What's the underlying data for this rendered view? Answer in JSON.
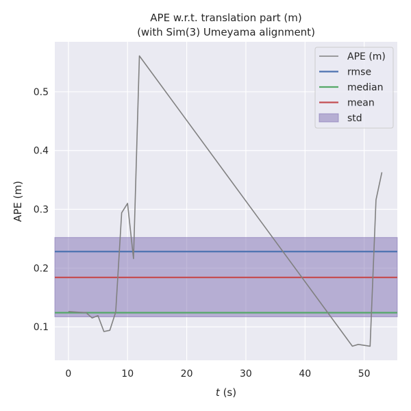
{
  "chart_data": {
    "type": "line",
    "title": "APE w.r.t. translation part (m)",
    "subtitle": "(with Sim(3) Umeyama alignment)",
    "xlabel_var": "t",
    "xlabel_unit": " (s)",
    "ylabel": "APE (m)",
    "xlim": [
      -2.3,
      55.6
    ],
    "ylim": [
      0.043,
      0.585
    ],
    "xticks": [
      0,
      10,
      20,
      30,
      40,
      50
    ],
    "yticks": [
      0.1,
      0.2,
      0.3,
      0.4,
      0.5
    ],
    "xtick_labels": [
      "0",
      "10",
      "20",
      "30",
      "40",
      "50"
    ],
    "ytick_labels": [
      "0.1",
      "0.2",
      "0.3",
      "0.4",
      "0.5"
    ],
    "grid": true,
    "legend_position": "top-right",
    "series": [
      {
        "name": "APE (m)",
        "color": "#808080",
        "x": [
          0,
          3,
          4,
          5,
          6,
          7,
          8,
          9,
          10,
          11,
          12,
          48,
          49,
          51,
          52,
          53
        ],
        "y": [
          0.126,
          0.124,
          0.115,
          0.119,
          0.092,
          0.094,
          0.125,
          0.294,
          0.31,
          0.216,
          0.561,
          0.067,
          0.07,
          0.067,
          0.316,
          0.363
        ]
      }
    ],
    "stats": {
      "rmse": {
        "name": "rmse",
        "value": 0.228,
        "color": "#4c72b0"
      },
      "median": {
        "name": "median",
        "value": 0.124,
        "color": "#55a868"
      },
      "mean": {
        "name": "mean",
        "value": 0.184,
        "color": "#c44e52"
      },
      "std": {
        "name": "std",
        "low": 0.117,
        "high": 0.252,
        "color": "#8172b3"
      }
    },
    "legend": [
      "APE (m)",
      "rmse",
      "median",
      "mean",
      "std"
    ]
  },
  "colors": {
    "plot_background": "#eaeaf2",
    "grid": "#ffffff",
    "text": "#262626"
  }
}
